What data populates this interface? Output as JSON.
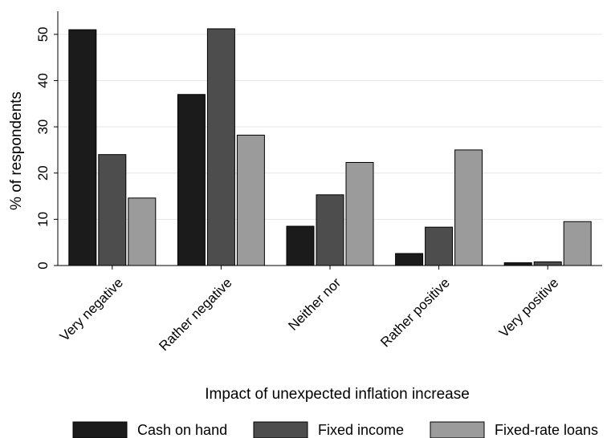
{
  "chart_data": {
    "type": "bar",
    "title": "",
    "xlabel": "Impact of unexpected inflation increase",
    "ylabel": "% of respondents",
    "ylim": [
      0,
      55
    ],
    "yticks": [
      0,
      10,
      20,
      30,
      40,
      50
    ],
    "grid": true,
    "legend_position": "bottom",
    "categories": [
      "Very negative",
      "Rather negative",
      "Neither nor",
      "Rather positive",
      "Very positive"
    ],
    "series": [
      {
        "name": "Cash on hand",
        "color": "#1b1b1b",
        "values": [
          51,
          37,
          8.5,
          2.6,
          0.6
        ]
      },
      {
        "name": "Fixed income",
        "color": "#4d4d4d",
        "values": [
          24,
          51.2,
          15.3,
          8.3,
          0.8
        ]
      },
      {
        "name": "Fixed-rate loans",
        "color": "#9b9b9b",
        "values": [
          14.6,
          28.2,
          22.3,
          25,
          9.5
        ]
      }
    ]
  }
}
